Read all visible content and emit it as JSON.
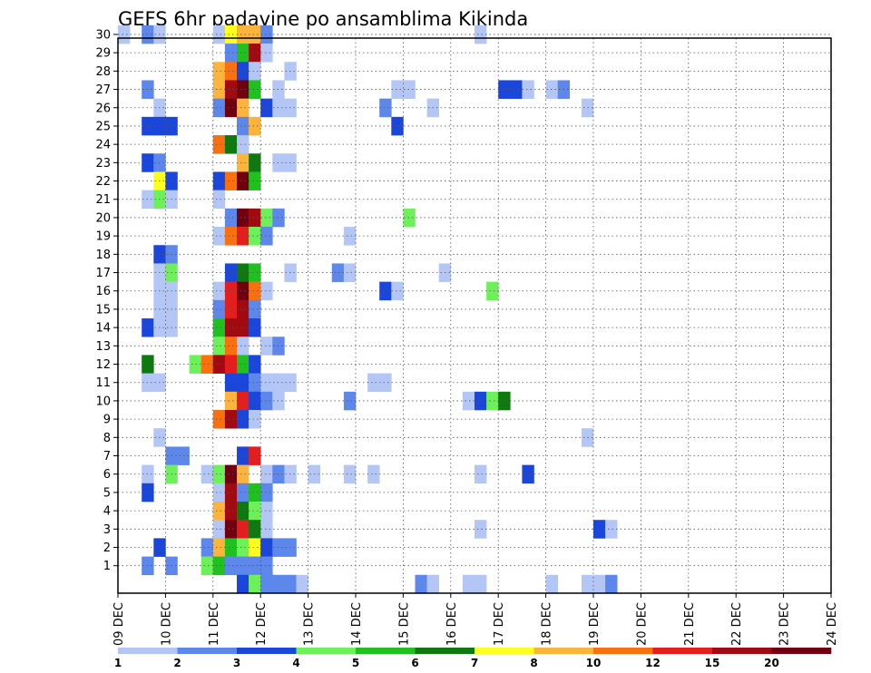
{
  "chart_data": {
    "type": "heatmap",
    "title": "GEFS 6hr padavine po ansamblima Kikinda",
    "x_ticks": [
      "09 DEC",
      "10 DEC",
      "11 DEC",
      "12 DEC",
      "13 DEC",
      "14 DEC",
      "15 DEC",
      "16 DEC",
      "17 DEC",
      "18 DEC",
      "19 DEC",
      "20 DEC",
      "21 DEC",
      "22 DEC",
      "23 DEC",
      "24 DEC"
    ],
    "y_ticks": [
      "1",
      "2",
      "3",
      "4",
      "5",
      "6",
      "7",
      "8",
      "9",
      "10",
      "11",
      "12",
      "13",
      "14",
      "15",
      "16",
      "17",
      "18",
      "19",
      "20",
      "21",
      "22",
      "23",
      "24",
      "25",
      "26",
      "27",
      "28",
      "29",
      "30"
    ],
    "x_step_hours": 6,
    "member_range": [
      0,
      30
    ],
    "grid": true,
    "colorbar": {
      "labels": [
        "1",
        "2",
        "3",
        "4",
        "5",
        "6",
        "7",
        "8",
        "10",
        "12",
        "15",
        "20"
      ],
      "colors": [
        "#b4c6f6",
        "#5d87ea",
        "#1a46dc",
        "#6ef05a",
        "#20c020",
        "#107810",
        "#ffff20",
        "#fcb43c",
        "#f87010",
        "#e41e1e",
        "#a00a10",
        "#700010"
      ]
    },
    "cells": [
      [
        30,
        0,
        1
      ],
      [
        30,
        2,
        2
      ],
      [
        30,
        3,
        1
      ],
      [
        30,
        8,
        1
      ],
      [
        30,
        9,
        7
      ],
      [
        30,
        10,
        8
      ],
      [
        30,
        11,
        8
      ],
      [
        30,
        12,
        2
      ],
      [
        30,
        30,
        1
      ],
      [
        29,
        9,
        2
      ],
      [
        29,
        10,
        5
      ],
      [
        29,
        11,
        11
      ],
      [
        29,
        12,
        1
      ],
      [
        28,
        8,
        8
      ],
      [
        28,
        9,
        9
      ],
      [
        28,
        10,
        3
      ],
      [
        28,
        11,
        1
      ],
      [
        28,
        14,
        1
      ],
      [
        27,
        2,
        2
      ],
      [
        27,
        8,
        8
      ],
      [
        27,
        9,
        11
      ],
      [
        27,
        10,
        12
      ],
      [
        27,
        11,
        5
      ],
      [
        27,
        13,
        1
      ],
      [
        27,
        23,
        1
      ],
      [
        27,
        24,
        1
      ],
      [
        27,
        32,
        3
      ],
      [
        27,
        33,
        3
      ],
      [
        27,
        34,
        1
      ],
      [
        27,
        36,
        1
      ],
      [
        27,
        37,
        2
      ],
      [
        26,
        3,
        1
      ],
      [
        26,
        8,
        2
      ],
      [
        26,
        9,
        12
      ],
      [
        26,
        10,
        8
      ],
      [
        26,
        12,
        3
      ],
      [
        26,
        13,
        1
      ],
      [
        26,
        14,
        1
      ],
      [
        26,
        22,
        2
      ],
      [
        26,
        26,
        1
      ],
      [
        26,
        39,
        1
      ],
      [
        25,
        2,
        3
      ],
      [
        25,
        3,
        3
      ],
      [
        25,
        4,
        3
      ],
      [
        25,
        10,
        2
      ],
      [
        25,
        11,
        8
      ],
      [
        25,
        23,
        3
      ],
      [
        24,
        8,
        9
      ],
      [
        24,
        9,
        6
      ],
      [
        24,
        10,
        1
      ],
      [
        23,
        2,
        3
      ],
      [
        23,
        3,
        2
      ],
      [
        23,
        10,
        8
      ],
      [
        23,
        11,
        6
      ],
      [
        23,
        13,
        1
      ],
      [
        23,
        14,
        1
      ],
      [
        22,
        3,
        7
      ],
      [
        22,
        4,
        3
      ],
      [
        22,
        8,
        3
      ],
      [
        22,
        9,
        9
      ],
      [
        22,
        10,
        12
      ],
      [
        22,
        11,
        5
      ],
      [
        21,
        2,
        1
      ],
      [
        21,
        3,
        4
      ],
      [
        21,
        4,
        1
      ],
      [
        21,
        8,
        1
      ],
      [
        20,
        9,
        2
      ],
      [
        20,
        10,
        12
      ],
      [
        20,
        11,
        11
      ],
      [
        20,
        12,
        4
      ],
      [
        20,
        13,
        2
      ],
      [
        20,
        24,
        4
      ],
      [
        19,
        8,
        1
      ],
      [
        19,
        9,
        9
      ],
      [
        19,
        10,
        10
      ],
      [
        19,
        11,
        4
      ],
      [
        19,
        12,
        2
      ],
      [
        19,
        19,
        1
      ],
      [
        18,
        3,
        3
      ],
      [
        18,
        4,
        2
      ],
      [
        17,
        3,
        1
      ],
      [
        17,
        4,
        4
      ],
      [
        17,
        9,
        3
      ],
      [
        17,
        10,
        6
      ],
      [
        17,
        11,
        5
      ],
      [
        17,
        14,
        1
      ],
      [
        17,
        18,
        2
      ],
      [
        17,
        19,
        1
      ],
      [
        17,
        27,
        1
      ],
      [
        16,
        3,
        1
      ],
      [
        16,
        4,
        1
      ],
      [
        16,
        8,
        1
      ],
      [
        16,
        9,
        10
      ],
      [
        16,
        10,
        12
      ],
      [
        16,
        11,
        9
      ],
      [
        16,
        12,
        1
      ],
      [
        16,
        22,
        3
      ],
      [
        16,
        23,
        1
      ],
      [
        16,
        31,
        4
      ],
      [
        15,
        3,
        1
      ],
      [
        15,
        4,
        1
      ],
      [
        15,
        8,
        2
      ],
      [
        15,
        9,
        10
      ],
      [
        15,
        10,
        11
      ],
      [
        15,
        11,
        2
      ],
      [
        14,
        2,
        3
      ],
      [
        14,
        3,
        1
      ],
      [
        14,
        4,
        1
      ],
      [
        14,
        8,
        5
      ],
      [
        14,
        9,
        11
      ],
      [
        14,
        10,
        11
      ],
      [
        14,
        11,
        3
      ],
      [
        13,
        8,
        4
      ],
      [
        13,
        9,
        9
      ],
      [
        13,
        10,
        1
      ],
      [
        13,
        12,
        1
      ],
      [
        13,
        13,
        2
      ],
      [
        12,
        2,
        6
      ],
      [
        12,
        6,
        4
      ],
      [
        12,
        7,
        9
      ],
      [
        12,
        8,
        11
      ],
      [
        12,
        9,
        10
      ],
      [
        12,
        10,
        5
      ],
      [
        12,
        11,
        3
      ],
      [
        11,
        2,
        1
      ],
      [
        11,
        3,
        1
      ],
      [
        11,
        9,
        3
      ],
      [
        11,
        10,
        3
      ],
      [
        11,
        11,
        2
      ],
      [
        11,
        12,
        1
      ],
      [
        11,
        13,
        1
      ],
      [
        11,
        14,
        1
      ],
      [
        11,
        21,
        1
      ],
      [
        11,
        22,
        1
      ],
      [
        10,
        9,
        8
      ],
      [
        10,
        10,
        10
      ],
      [
        10,
        11,
        3
      ],
      [
        10,
        12,
        2
      ],
      [
        10,
        13,
        1
      ],
      [
        10,
        19,
        2
      ],
      [
        10,
        29,
        1
      ],
      [
        10,
        30,
        3
      ],
      [
        10,
        31,
        4
      ],
      [
        10,
        32,
        6
      ],
      [
        9,
        8,
        9
      ],
      [
        9,
        9,
        11
      ],
      [
        9,
        10,
        3
      ],
      [
        9,
        11,
        1
      ],
      [
        8,
        3,
        1
      ],
      [
        8,
        39,
        1
      ],
      [
        7,
        4,
        2
      ],
      [
        7,
        5,
        2
      ],
      [
        7,
        10,
        3
      ],
      [
        7,
        11,
        10
      ],
      [
        6,
        2,
        1
      ],
      [
        6,
        4,
        4
      ],
      [
        6,
        7,
        1
      ],
      [
        6,
        8,
        4
      ],
      [
        6,
        9,
        12
      ],
      [
        6,
        10,
        8
      ],
      [
        6,
        12,
        1
      ],
      [
        6,
        13,
        2
      ],
      [
        6,
        14,
        1
      ],
      [
        6,
        16,
        1
      ],
      [
        6,
        19,
        1
      ],
      [
        6,
        21,
        1
      ],
      [
        6,
        30,
        1
      ],
      [
        6,
        34,
        3
      ],
      [
        5,
        2,
        3
      ],
      [
        5,
        8,
        1
      ],
      [
        5,
        9,
        11
      ],
      [
        5,
        10,
        2
      ],
      [
        5,
        11,
        5
      ],
      [
        5,
        12,
        2
      ],
      [
        4,
        8,
        8
      ],
      [
        4,
        9,
        11
      ],
      [
        4,
        10,
        6
      ],
      [
        4,
        11,
        4
      ],
      [
        4,
        12,
        1
      ],
      [
        3,
        8,
        1
      ],
      [
        3,
        9,
        12
      ],
      [
        3,
        10,
        10
      ],
      [
        3,
        11,
        6
      ],
      [
        3,
        12,
        1
      ],
      [
        3,
        30,
        1
      ],
      [
        3,
        40,
        3
      ],
      [
        3,
        41,
        1
      ],
      [
        2,
        3,
        3
      ],
      [
        2,
        7,
        2
      ],
      [
        2,
        8,
        8
      ],
      [
        2,
        9,
        5
      ],
      [
        2,
        10,
        4
      ],
      [
        2,
        11,
        7
      ],
      [
        2,
        12,
        3
      ],
      [
        2,
        13,
        2
      ],
      [
        2,
        14,
        2
      ],
      [
        1,
        2,
        2
      ],
      [
        1,
        4,
        2
      ],
      [
        1,
        7,
        4
      ],
      [
        1,
        8,
        5
      ],
      [
        1,
        9,
        2
      ],
      [
        1,
        10,
        2
      ],
      [
        1,
        11,
        2
      ],
      [
        1,
        12,
        2
      ],
      [
        0,
        10,
        3
      ],
      [
        0,
        11,
        4
      ],
      [
        0,
        12,
        2
      ],
      [
        0,
        13,
        2
      ],
      [
        0,
        14,
        2
      ],
      [
        0,
        15,
        1
      ],
      [
        0,
        25,
        2
      ],
      [
        0,
        26,
        1
      ],
      [
        0,
        29,
        1
      ],
      [
        0,
        30,
        1
      ],
      [
        0,
        36,
        1
      ],
      [
        0,
        39,
        1
      ],
      [
        0,
        40,
        1
      ],
      [
        0,
        41,
        2
      ]
    ]
  }
}
